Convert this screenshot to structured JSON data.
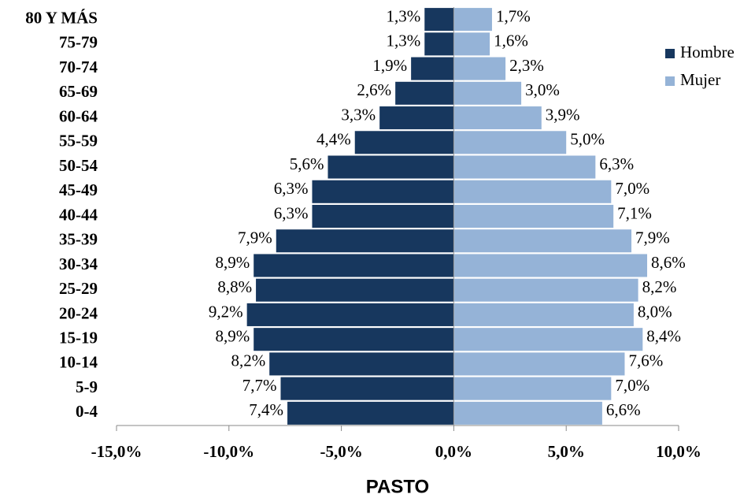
{
  "chart_data": {
    "type": "pyramid",
    "title": "PASTO",
    "categories": [
      "80 Y MÁS",
      "75-79",
      "70-74",
      "65-69",
      "60-64",
      "55-59",
      "50-54",
      "45-49",
      "40-44",
      "35-39",
      "30-34",
      "25-29",
      "20-24",
      "15-19",
      "10-14",
      "5-9",
      "0-4"
    ],
    "series": [
      {
        "name": "Hombre",
        "color": "#17375e",
        "values": [
          -1.3,
          -1.3,
          -1.9,
          -2.6,
          -3.3,
          -4.4,
          -5.6,
          -6.3,
          -6.3,
          -7.9,
          -8.9,
          -8.8,
          -9.2,
          -8.9,
          -8.2,
          -7.7,
          -7.4
        ],
        "value_labels": [
          "1,3%",
          "1,3%",
          "1,9%",
          "2,6%",
          "3,3%",
          "4,4%",
          "5,6%",
          "6,3%",
          "6,3%",
          "7,9%",
          "8,9%",
          "8,8%",
          "9,2%",
          "8,9%",
          "8,2%",
          "7,7%",
          "7,4%"
        ]
      },
      {
        "name": "Mujer",
        "color": "#95b3d7",
        "values": [
          1.7,
          1.6,
          2.3,
          3.0,
          3.9,
          5.0,
          6.3,
          7.0,
          7.1,
          7.9,
          8.6,
          8.2,
          8.0,
          8.4,
          7.6,
          7.0,
          6.6
        ],
        "value_labels": [
          "1,7%",
          "1,6%",
          "2,3%",
          "3,0%",
          "3,9%",
          "5,0%",
          "6,3%",
          "7,0%",
          "7,1%",
          "7,9%",
          "8,6%",
          "8,2%",
          "8,0%",
          "8,4%",
          "7,6%",
          "7,0%",
          "6,6%"
        ]
      }
    ],
    "xlim": [
      -15,
      10
    ],
    "xticks": [
      {
        "value": -15,
        "label": "-15,0%"
      },
      {
        "value": -10,
        "label": "-10,0%"
      },
      {
        "value": -5,
        "label": "-5,0%"
      },
      {
        "value": 0,
        "label": "0,0%"
      },
      {
        "value": 5,
        "label": "5,0%"
      },
      {
        "value": 10,
        "label": "10,0%"
      }
    ],
    "legend": "right"
  }
}
